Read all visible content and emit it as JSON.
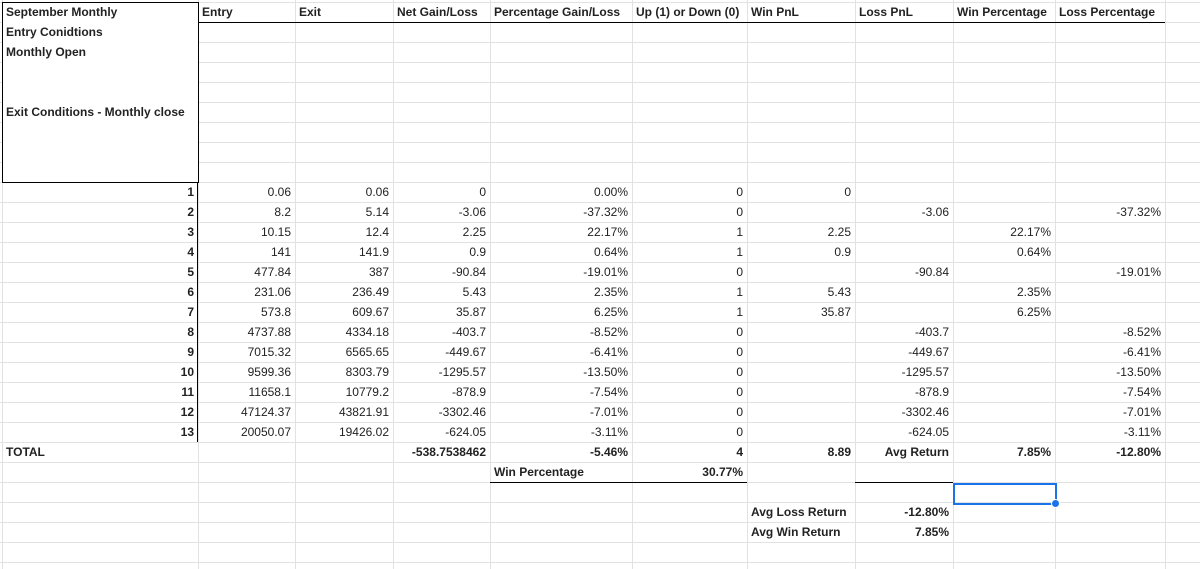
{
  "header": {
    "title": "September Monthly",
    "columns": [
      "Entry",
      "Exit",
      "Net Gain/Loss",
      "Percentage Gain/Loss",
      "Up (1) or Down (0)",
      "Win PnL",
      "Loss PnL",
      "Win Percentage",
      "Loss Percentage"
    ]
  },
  "notes": [
    "Entry Conidtions",
    "Monthly Open",
    "Exit Conditions - Monthly close"
  ],
  "table": {
    "rows": [
      [
        "1",
        "0.06",
        "0.06",
        "0",
        "0.00%",
        "0",
        "0",
        null,
        null,
        null
      ],
      [
        "2",
        "8.2",
        "5.14",
        "-3.06",
        "-37.32%",
        "0",
        null,
        "-3.06",
        null,
        "-37.32%"
      ],
      [
        "3",
        "10.15",
        "12.4",
        "2.25",
        "22.17%",
        "1",
        "2.25",
        null,
        "22.17%",
        null
      ],
      [
        "4",
        "141",
        "141.9",
        "0.9",
        "0.64%",
        "1",
        "0.9",
        null,
        "0.64%",
        null
      ],
      [
        "5",
        "477.84",
        "387",
        "-90.84",
        "-19.01%",
        "0",
        null,
        "-90.84",
        null,
        "-19.01%"
      ],
      [
        "6",
        "231.06",
        "236.49",
        "5.43",
        "2.35%",
        "1",
        "5.43",
        null,
        "2.35%",
        null
      ],
      [
        "7",
        "573.8",
        "609.67",
        "35.87",
        "6.25%",
        "1",
        "35.87",
        null,
        "6.25%",
        null
      ],
      [
        "8",
        "4737.88",
        "4334.18",
        "-403.7",
        "-8.52%",
        "0",
        null,
        "-403.7",
        null,
        "-8.52%"
      ],
      [
        "9",
        "7015.32",
        "6565.65",
        "-449.67",
        "-6.41%",
        "0",
        null,
        "-449.67",
        null,
        "-6.41%"
      ],
      [
        "10",
        "9599.36",
        "8303.79",
        "-1295.57",
        "-13.50%",
        "0",
        null,
        "-1295.57",
        null,
        "-13.50%"
      ],
      [
        "11",
        "11658.1",
        "10779.2",
        "-878.9",
        "-7.54%",
        "0",
        null,
        "-878.9",
        null,
        "-7.54%"
      ],
      [
        "12",
        "47124.37",
        "43821.91",
        "-3302.46",
        "-7.01%",
        "0",
        null,
        "-3302.46",
        null,
        "-7.01%"
      ],
      [
        "13",
        "20050.07",
        "19426.02",
        "-624.05",
        "-3.11%",
        "0",
        null,
        "-624.05",
        null,
        "-3.11%"
      ]
    ]
  },
  "total": {
    "label": "TOTAL",
    "cells": [
      null,
      null,
      "-538.7538462",
      "-5.46%",
      "4",
      "8.89",
      "Avg Return",
      "7.85%",
      "-12.80%"
    ]
  },
  "summary": {
    "win_percentage_label": "Win Percentage",
    "win_percentage": "30.77%",
    "avg_loss_label": "Avg Loss Return",
    "avg_loss": "-12.80%",
    "avg_win_label": "Avg Win Return",
    "avg_win": "7.85%"
  }
}
